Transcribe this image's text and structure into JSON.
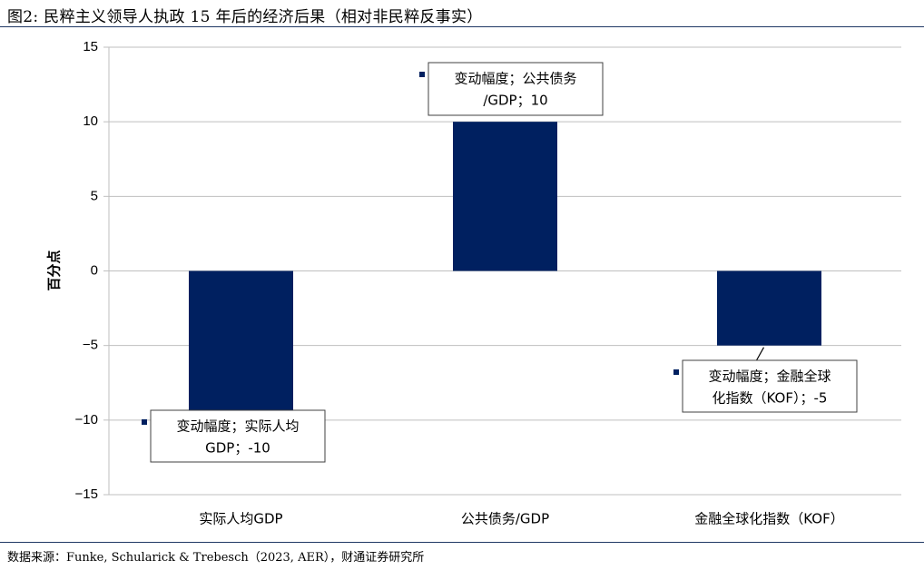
{
  "figure": {
    "title": "图2: 民粹主义领导人执政 15 年后的经济后果（相对非民粹反事实）",
    "source": "数据来源：Funke, Schularick & Trebesch（2023, AER），财通证券研究所"
  },
  "colors": {
    "bar": "#002060",
    "grid": "#bfbfbf",
    "rule": "#1f3864"
  },
  "chart_data": {
    "type": "bar",
    "title": "",
    "xlabel": "",
    "ylabel": "百分点",
    "categories": [
      "实际人均GDP",
      "公共债务/GDP",
      "金融全球化指数（KOF）"
    ],
    "values": [
      -10,
      10,
      -5
    ],
    "ylim": [
      -15,
      15
    ],
    "yticks": [
      15,
      10,
      5,
      0,
      -5,
      -10,
      -15
    ],
    "ytick_labels": [
      "15",
      "10",
      "5",
      "0",
      "−5",
      "−10",
      "−15"
    ],
    "grid": true,
    "legend": "none",
    "data_labels": [
      {
        "lines": [
          "变动幅度；实际人均",
          "GDP；-10"
        ]
      },
      {
        "lines": [
          "变动幅度；公共债务",
          "/GDP；10"
        ]
      },
      {
        "lines": [
          "变动幅度；金融全球",
          "化指数（KOF）；-5"
        ]
      }
    ]
  }
}
